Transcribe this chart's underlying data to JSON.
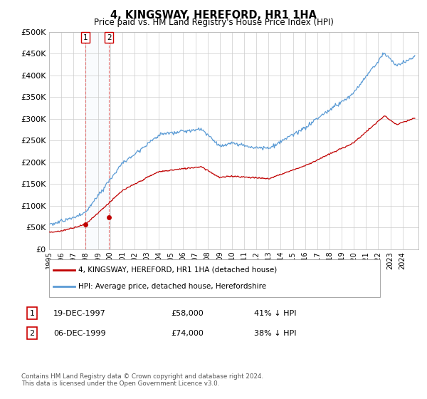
{
  "title": "4, KINGSWAY, HEREFORD, HR1 1HA",
  "subtitle": "Price paid vs. HM Land Registry's House Price Index (HPI)",
  "ylim": [
    0,
    500000
  ],
  "yticks": [
    0,
    50000,
    100000,
    150000,
    200000,
    250000,
    300000,
    350000,
    400000,
    450000,
    500000
  ],
  "hpi_color": "#5b9bd5",
  "sale_color": "#c00000",
  "legend_label_sale": "4, KINGSWAY, HEREFORD, HR1 1HA (detached house)",
  "legend_label_hpi": "HPI: Average price, detached house, Herefordshire",
  "tx1_x": 1997.96,
  "tx1_y": 58000,
  "tx2_x": 1999.92,
  "tx2_y": 74000,
  "table_rows": [
    {
      "num": "1",
      "date": "19-DEC-1997",
      "price": "£58,000",
      "pct": "41% ↓ HPI"
    },
    {
      "num": "2",
      "date": "06-DEC-1999",
      "price": "£74,000",
      "pct": "38% ↓ HPI"
    }
  ],
  "footnote": "Contains HM Land Registry data © Crown copyright and database right 2024.\nThis data is licensed under the Open Government Licence v3.0.",
  "background_color": "#ffffff",
  "grid_color": "#cccccc",
  "box_color": "#cc0000",
  "hpi_seed": 12,
  "sale_seed": 7,
  "xlim_min": 1995.0,
  "xlim_max": 2025.3
}
